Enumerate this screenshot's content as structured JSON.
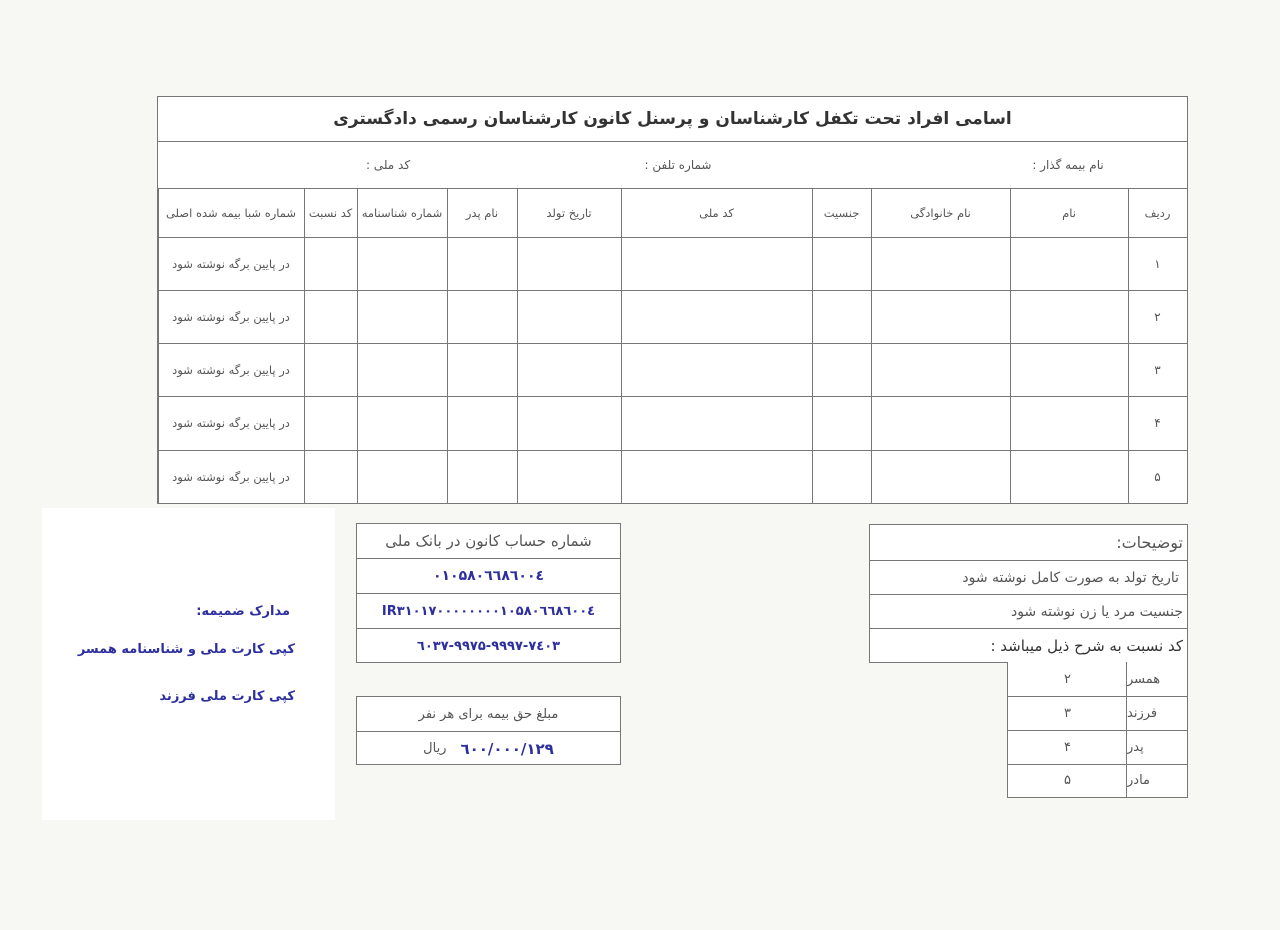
{
  "form": {
    "title": "اسامی افراد تحت تکفل کارشناسان و پرسنل کانون کارشناسان رسمی دادگستری",
    "insurer_name_label": "نام بیمه گذار :",
    "phone_label": "شماره تلفن :",
    "national_code_label": "کد ملی :",
    "columns": [
      "ردیف",
      "نام",
      "نام خانوادگی",
      "جنسیت",
      "کد ملی",
      "تاریخ تولد",
      "نام پدر",
      "شماره شناسنامه",
      "کد نسبت",
      "شماره شبا بیمه شده اصلی"
    ],
    "rows": [
      {
        "index": "۱",
        "sheba": "در پایین برگه نوشته شود"
      },
      {
        "index": "۲",
        "sheba": "در پایین برگه نوشته شود"
      },
      {
        "index": "۳",
        "sheba": "در پایین برگه نوشته شود"
      },
      {
        "index": "۴",
        "sheba": "در پایین برگه نوشته شود"
      },
      {
        "index": "۵",
        "sheba": "در پایین برگه نوشته شود"
      }
    ]
  },
  "bank": {
    "heading": "شماره حساب کانون در بانک ملی",
    "account": "۰۱۰۵۸۰٦٦٨٦۰۰٤",
    "sheba": "IR۳۱۰۱۷۰۰۰۰۰۰۰۰۱۰۵۸۰٦٦٨٦۰۰٤",
    "card": "٦۰۳۷-۹۹۷۵-۹۹۹۷-۷٤۰۳"
  },
  "premium": {
    "heading": "مبلغ حق بیمه برای هر نفر",
    "amount": "۱۲۹/٦۰۰/۰۰۰",
    "unit": "ریال"
  },
  "notes": {
    "heading": "توضیحات:",
    "lines": [
      "تاریخ تولد به صورت کامل نوشته شود",
      "جنسیت مرد یا زن نوشته شود",
      "کد نسبت به شرح ذیل میباشد :"
    ],
    "relations": [
      {
        "name": "همسر",
        "code": "۲"
      },
      {
        "name": "فرزند",
        "code": "۳"
      },
      {
        "name": "پدر",
        "code": "۴"
      },
      {
        "name": "مادر",
        "code": "۵"
      }
    ]
  },
  "attachments": {
    "heading": "مدارک ضمیمه:",
    "items": [
      "کپی کارت ملی و شناسنامه همسر",
      "کپی کارت ملی فرزند"
    ]
  },
  "colors": {
    "handwriting_blue": "#2d2f9e",
    "line": "#777777"
  }
}
